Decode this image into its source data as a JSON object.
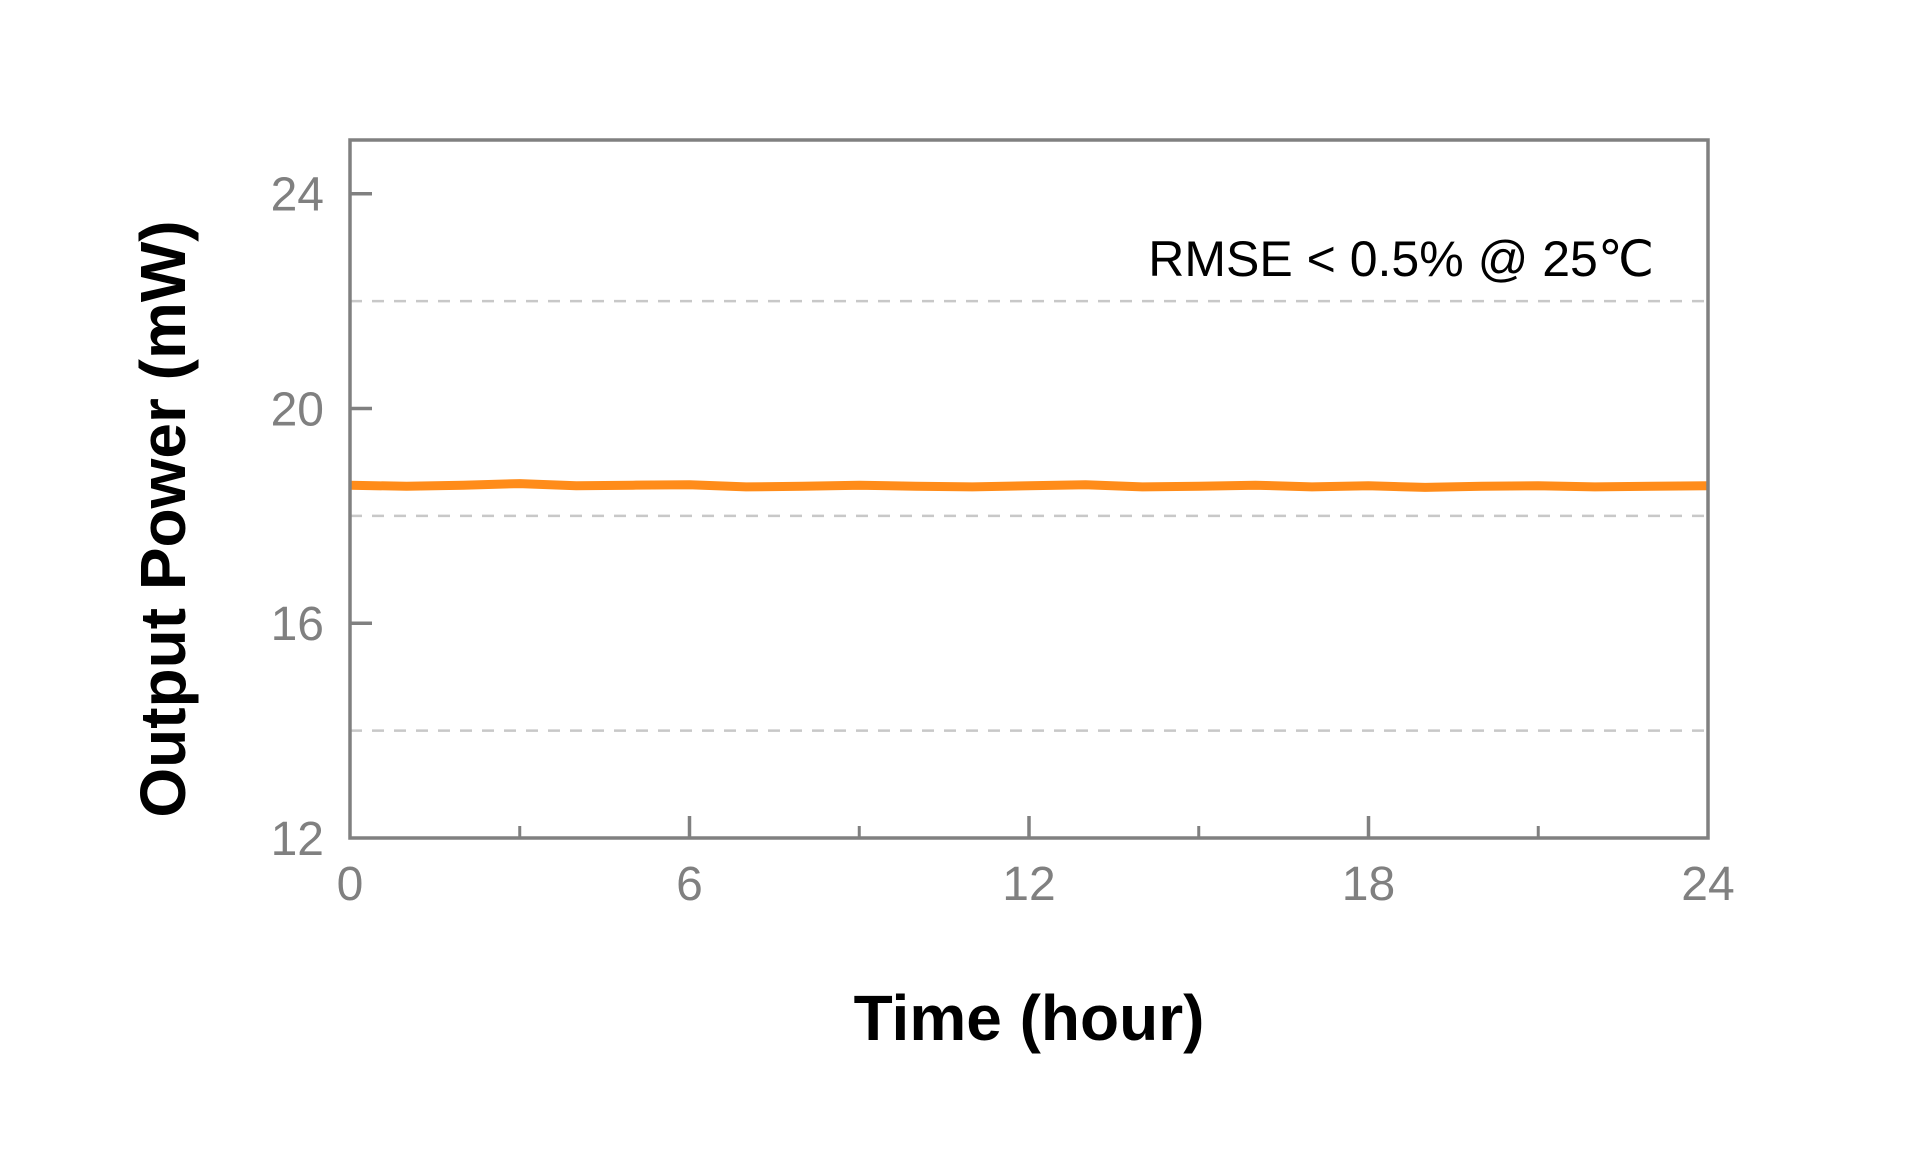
{
  "chart_data": {
    "type": "line",
    "title": "",
    "xlabel": "Time (hour)",
    "ylabel": "Output Power (mW)",
    "xlim": [
      0,
      24
    ],
    "ylim": [
      12,
      25
    ],
    "x_ticks": [
      0,
      6,
      12,
      18,
      24
    ],
    "x_minor_ticks": [
      3,
      9,
      15,
      21
    ],
    "y_ticks": [
      12,
      16,
      20,
      24
    ],
    "y_gridlines": [
      14,
      18,
      22
    ],
    "grid": "dashed horizontal at 14, 18, 22",
    "legend": "none",
    "annotation": "RMSE < 0.5% @ 25℃",
    "colors": {
      "series": "#ff8c1a",
      "axes": "#808080",
      "grid": "#c8c8c8",
      "tick_text": "#808080"
    },
    "series": [
      {
        "name": "",
        "x": [
          0,
          1,
          2,
          3,
          4,
          5,
          6,
          7,
          8,
          9,
          10,
          11,
          12,
          13,
          14,
          15,
          16,
          17,
          18,
          19,
          20,
          21,
          22,
          23,
          24
        ],
        "y": [
          18.57,
          18.55,
          18.57,
          18.6,
          18.56,
          18.57,
          18.58,
          18.54,
          18.55,
          18.57,
          18.55,
          18.54,
          18.56,
          18.58,
          18.54,
          18.55,
          18.57,
          18.54,
          18.56,
          18.53,
          18.55,
          18.56,
          18.54,
          18.55,
          18.56
        ]
      }
    ]
  }
}
